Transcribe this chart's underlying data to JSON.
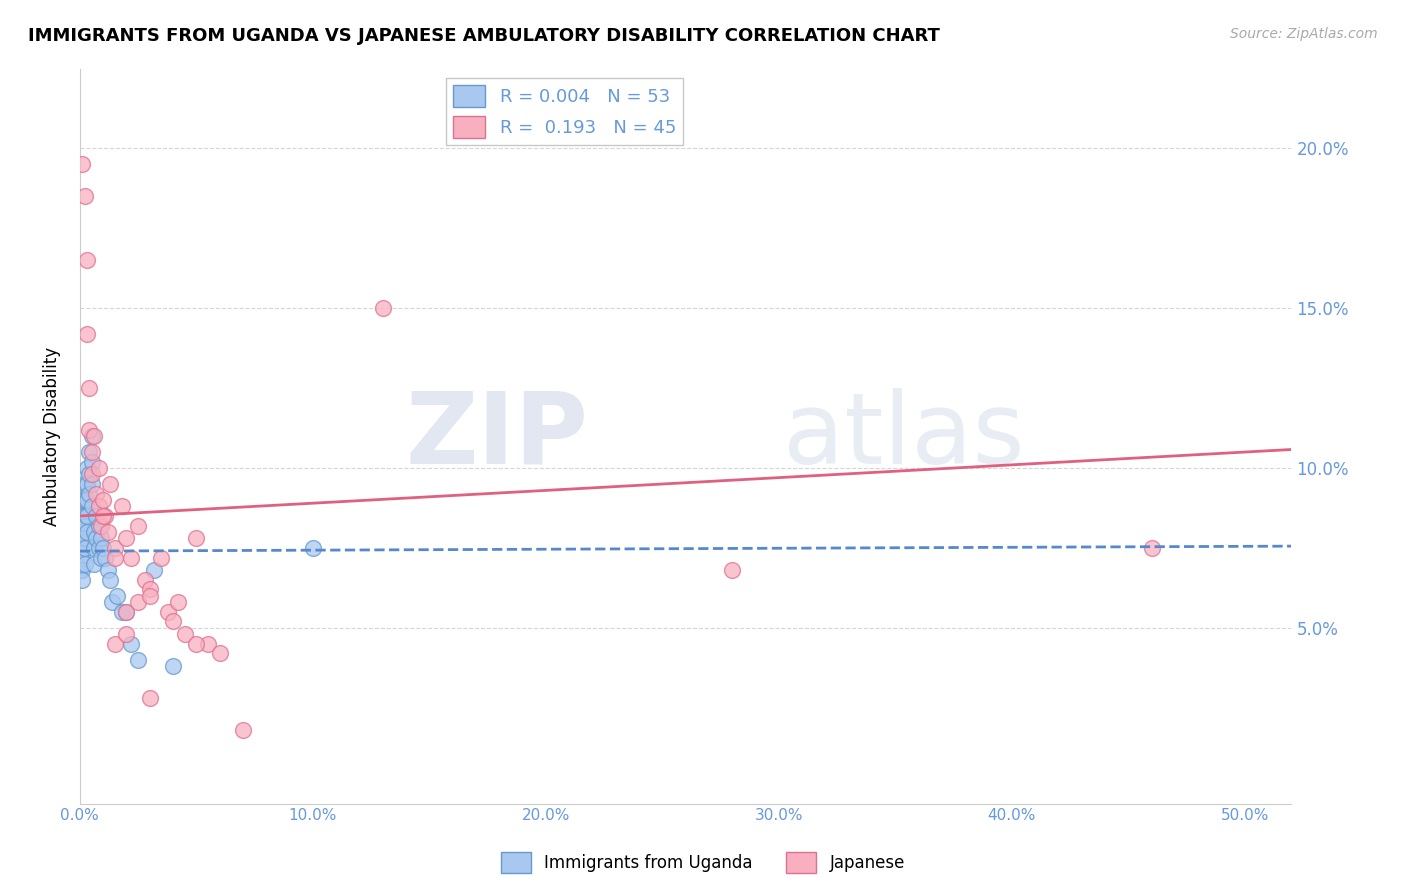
{
  "title": "IMMIGRANTS FROM UGANDA VS JAPANESE AMBULATORY DISABILITY CORRELATION CHART",
  "source": "Source: ZipAtlas.com",
  "ylabel": "Ambulatory Disability",
  "right_yticks": [
    "20.0%",
    "15.0%",
    "10.0%",
    "5.0%"
  ],
  "right_ytick_vals": [
    0.2,
    0.15,
    0.1,
    0.05
  ],
  "xticks": [
    0.0,
    0.1,
    0.2,
    0.3,
    0.4,
    0.5
  ],
  "xticklabels": [
    "0.0%",
    "10.0%",
    "20.0%",
    "30.0%",
    "40.0%",
    "50.0%"
  ],
  "xlim": [
    0.0,
    0.52
  ],
  "ylim": [
    -0.005,
    0.225
  ],
  "legend1_r": "0.004",
  "legend1_n": "53",
  "legend2_r": "0.193",
  "legend2_n": "45",
  "color_blue_fill": "#A8C8F0",
  "color_pink_fill": "#F8B0C0",
  "color_blue_edge": "#6699CC",
  "color_pink_edge": "#E07090",
  "color_blue_line": "#5588CC",
  "color_pink_line": "#E06080",
  "color_blue_text": "#6699DD",
  "watermark_zip": "ZIP",
  "watermark_atlas": "atlas",
  "blue_x": [
    0.0,
    0.0,
    0.0,
    0.0,
    0.001,
    0.001,
    0.001,
    0.001,
    0.001,
    0.001,
    0.001,
    0.001,
    0.002,
    0.002,
    0.002,
    0.002,
    0.002,
    0.002,
    0.002,
    0.003,
    0.003,
    0.003,
    0.003,
    0.003,
    0.004,
    0.004,
    0.004,
    0.005,
    0.005,
    0.005,
    0.005,
    0.006,
    0.006,
    0.006,
    0.007,
    0.007,
    0.008,
    0.008,
    0.009,
    0.009,
    0.01,
    0.011,
    0.012,
    0.013,
    0.014,
    0.016,
    0.018,
    0.02,
    0.022,
    0.025,
    0.1,
    0.032,
    0.04
  ],
  "blue_y": [
    0.08,
    0.075,
    0.072,
    0.068,
    0.09,
    0.085,
    0.082,
    0.078,
    0.075,
    0.072,
    0.068,
    0.065,
    0.095,
    0.09,
    0.085,
    0.082,
    0.078,
    0.075,
    0.07,
    0.1,
    0.095,
    0.09,
    0.085,
    0.08,
    0.105,
    0.098,
    0.092,
    0.11,
    0.102,
    0.095,
    0.088,
    0.08,
    0.075,
    0.07,
    0.085,
    0.078,
    0.082,
    0.075,
    0.078,
    0.072,
    0.075,
    0.072,
    0.068,
    0.065,
    0.058,
    0.06,
    0.055,
    0.055,
    0.045,
    0.04,
    0.075,
    0.068,
    0.038
  ],
  "pink_x": [
    0.001,
    0.002,
    0.003,
    0.003,
    0.004,
    0.004,
    0.005,
    0.005,
    0.006,
    0.007,
    0.008,
    0.009,
    0.01,
    0.011,
    0.012,
    0.013,
    0.015,
    0.015,
    0.018,
    0.02,
    0.022,
    0.025,
    0.028,
    0.03,
    0.035,
    0.038,
    0.04,
    0.042,
    0.045,
    0.05,
    0.055,
    0.06,
    0.13,
    0.28,
    0.46,
    0.02,
    0.025,
    0.03,
    0.008,
    0.01,
    0.015,
    0.02,
    0.03,
    0.05,
    0.07
  ],
  "pink_y": [
    0.195,
    0.185,
    0.165,
    0.142,
    0.125,
    0.112,
    0.105,
    0.098,
    0.11,
    0.092,
    0.088,
    0.082,
    0.09,
    0.085,
    0.08,
    0.095,
    0.075,
    0.072,
    0.088,
    0.078,
    0.072,
    0.082,
    0.065,
    0.062,
    0.072,
    0.055,
    0.052,
    0.058,
    0.048,
    0.078,
    0.045,
    0.042,
    0.15,
    0.068,
    0.075,
    0.055,
    0.058,
    0.06,
    0.1,
    0.085,
    0.045,
    0.048,
    0.028,
    0.045,
    0.018
  ]
}
